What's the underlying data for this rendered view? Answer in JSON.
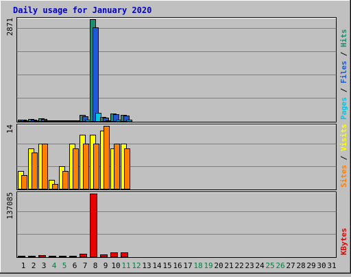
{
  "chart_data": {
    "type": "bar",
    "title": "Daily usage for January 2020",
    "categories": [
      "1",
      "2",
      "3",
      "4",
      "5",
      "6",
      "7",
      "8",
      "9",
      "10",
      "11",
      "12",
      "13",
      "14",
      "15",
      "16",
      "17",
      "18",
      "19",
      "20",
      "21",
      "22",
      "23",
      "24",
      "25",
      "26",
      "27",
      "28",
      "29",
      "30",
      "31"
    ],
    "weekend_days": [
      "4",
      "5",
      "11",
      "12",
      "18",
      "19",
      "25",
      "26"
    ],
    "panels": [
      {
        "id": "hits-files-pages",
        "ymax": 2871,
        "ymax_label": "2871",
        "axis_label_parts": [
          {
            "text": "Pages",
            "color": "#00c8e6"
          },
          {
            "text": " / ",
            "color": "#000000"
          },
          {
            "text": "Files",
            "color": "#1e5ad2"
          },
          {
            "text": " / ",
            "color": "#000000"
          },
          {
            "text": "Hits",
            "color": "#1e8c6e"
          }
        ],
        "series": [
          {
            "name": "Hits",
            "color": "#1e8c6e",
            "values": [
              35,
              55,
              80,
              25,
              25,
              25,
              165,
              2871,
              110,
              210,
              175,
              0,
              0,
              0,
              0,
              0,
              0,
              0,
              0,
              0,
              0,
              0,
              0,
              0,
              0,
              0,
              0,
              0,
              0,
              0,
              0
            ]
          },
          {
            "name": "Files",
            "color": "#1e5ad2",
            "values": [
              30,
              45,
              65,
              20,
              20,
              20,
              140,
              2640,
              95,
              190,
              160,
              0,
              0,
              0,
              0,
              0,
              0,
              0,
              0,
              0,
              0,
              0,
              0,
              0,
              0,
              0,
              0,
              0,
              0,
              0,
              0
            ]
          },
          {
            "name": "Pages",
            "color": "#00c8e6",
            "values": [
              5,
              10,
              15,
              5,
              5,
              5,
              30,
              240,
              20,
              40,
              30,
              0,
              0,
              0,
              0,
              0,
              0,
              0,
              0,
              0,
              0,
              0,
              0,
              0,
              0,
              0,
              0,
              0,
              0,
              0,
              0
            ]
          }
        ]
      },
      {
        "id": "visits-sites",
        "ymax": 14,
        "ymax_label": "14",
        "axis_label_parts": [
          {
            "text": "Sites",
            "color": "#ff8000"
          },
          {
            "text": " / ",
            "color": "#000000"
          },
          {
            "text": "Visits",
            "color": "#ffff00"
          }
        ],
        "series": [
          {
            "name": "Visits",
            "color": "#ffff00",
            "values": [
              4,
              9,
              10,
              2,
              5,
              10,
              12,
              12,
              13,
              9,
              10,
              0,
              0,
              0,
              0,
              0,
              0,
              0,
              0,
              0,
              0,
              0,
              0,
              0,
              0,
              0,
              0,
              0,
              0,
              0,
              0
            ]
          },
          {
            "name": "Sites",
            "color": "#ff8000",
            "values": [
              3,
              8,
              10,
              1,
              4,
              9,
              10,
              10,
              14,
              10,
              9,
              0,
              0,
              0,
              0,
              0,
              0,
              0,
              0,
              0,
              0,
              0,
              0,
              0,
              0,
              0,
              0,
              0,
              0,
              0,
              0
            ]
          }
        ]
      },
      {
        "id": "kbytes",
        "ymax": 137085,
        "ymax_label": "137085",
        "axis_label_parts": [
          {
            "text": "KBytes",
            "color": "#e60000"
          }
        ],
        "series": [
          {
            "name": "KBytes",
            "color": "#e60000",
            "values": [
              1500,
              1500,
              2500,
              1200,
              1200,
              1200,
              6000,
              137085,
              4500,
              9000,
              8500,
              0,
              0,
              0,
              0,
              0,
              0,
              0,
              0,
              0,
              0,
              0,
              0,
              0,
              0,
              0,
              0,
              0,
              0,
              0,
              0
            ]
          }
        ]
      }
    ]
  }
}
